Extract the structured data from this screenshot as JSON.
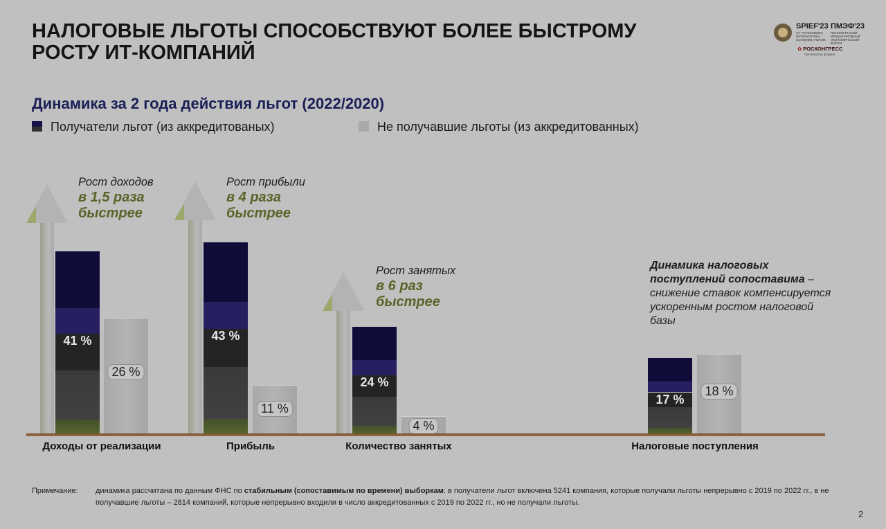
{
  "slide": {
    "title_line1": "НАЛОГОВЫЕ ЛЬГОТЫ СПОСОБСТВУЮТ БОЛЕЕ БЫСТРОМУ",
    "title_line2": "РОСТУ ИТ-КОМПАНИЙ",
    "subtitle": "Динамика за 2 года действия льгот (2022/2020)",
    "page_number": "2"
  },
  "logo": {
    "spief": "SPIEF'23",
    "pmef": "ПМЭФ'23",
    "spief_fine": "ST. PETERSBURG INTERNATIONAL ECONOMIC FORUM",
    "pmef_fine": "ПЕТЕРБУРГСКИЙ МЕЖДУНАРОДНЫЙ ЭКОНОМИЧЕСКИЙ ФОРУМ",
    "roscongress": "РОСКОНГРЕСС",
    "roscongress_sub": "Организатор форума"
  },
  "legend": {
    "recipients": "Получатели льгот (из аккредитованых)",
    "non_recipients": "Не получавшие льготы (из аккредитованных)"
  },
  "chart_data": {
    "type": "bar",
    "title": "Динамика за 2 года действия льгот (2022/2020)",
    "categories": [
      "Доходы от реализации",
      "Прибыль",
      "Количество занятых",
      "Налоговые поступления"
    ],
    "series": [
      {
        "name": "Получатели льгот (из аккредитованых)",
        "values": [
          41,
          43,
          24,
          17
        ],
        "labels": [
          "41 %",
          "43 %",
          "24 %",
          "17 %"
        ],
        "color": "#0f0c3a"
      },
      {
        "name": "Не получавшие льготы (из аккредитованных)",
        "values": [
          26,
          11,
          4,
          18
        ],
        "labels": [
          "26 %",
          "11 %",
          "4 %",
          "18 %"
        ],
        "color": "#a9a9a9"
      }
    ],
    "ylim": [
      0,
      50
    ],
    "grid": false,
    "legend_position": "top-left",
    "annotations": [
      {
        "category": "Доходы от реализации",
        "line1": "Рост доходов",
        "hl1": "в 1,5 раза",
        "hl2": "быстрее"
      },
      {
        "category": "Прибыль",
        "line1": "Рост прибыли",
        "hl1": "в 4 раза",
        "hl2": "быстрее"
      },
      {
        "category": "Количество занятых",
        "line1": "Рост занятых",
        "hl1": "в 6 раз",
        "hl2": "быстрее"
      }
    ],
    "tax_note": {
      "bold1": "Динамика налоговых",
      "bold2": "поступлений сопоставима",
      "rest": " – снижение ставок компенсируется ускоренным ростом налоговой базы"
    }
  },
  "footnote": {
    "label": "Примечание:",
    "text_pre": "динамика рассчитана по данным ФНС по ",
    "text_bold": "стабильным (сопоставимым по времени) выборкам",
    "text_post": ": в получатели льгот включена 5241 компания, которые получали льготы непрерывно с 2019 по 2022 гг., в не получавшие льготы – 2814 компаний, которые непрерывно входили в число аккредитованных с 2019 по 2022 гг., но не получали льготы."
  },
  "colors": {
    "background": "#c0c0c0",
    "subtitle": "#1a1f55",
    "highlight": "#5c6228",
    "axis": "#8a6040"
  }
}
